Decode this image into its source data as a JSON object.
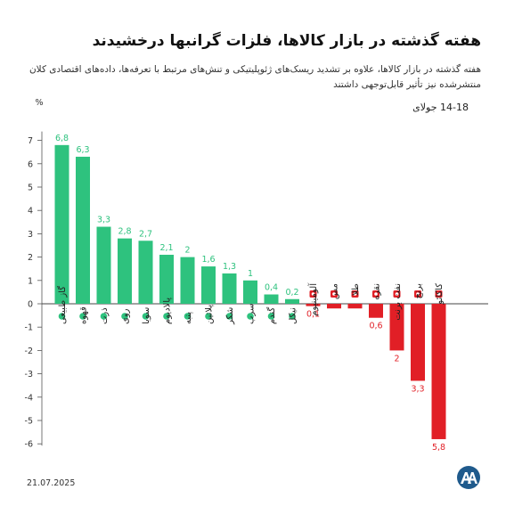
{
  "header": {
    "title": "هفته گذشته در بازار کالاها، فلزات گرانبها درخشیدند",
    "subtitle": "هفته گذشته در بازار کالاها، علاوه بر تشدید ریسک‌های ژئوپلیتیکی و تنش‌های مرتبط با تعرفه‌ها، داده‌های اقتصادی کلان منتشرشده نیز تأثیر قابل‌توجهی داشتند",
    "period": "14-18 جولای"
  },
  "footer": {
    "date": "21.07.2025",
    "logo_icon": "aa-logo-icon"
  },
  "colors": {
    "positive": "#2ec27e",
    "negative": "#e11f26",
    "logo": "#1f5a8c"
  },
  "chart_data": {
    "type": "bar",
    "ylabel": "%",
    "ylim": [
      -6,
      7
    ],
    "yticks": [
      7,
      6,
      5,
      4,
      3,
      2,
      1,
      0,
      -1,
      -2,
      -3,
      -4,
      -5,
      -6
    ],
    "grid": false,
    "categories": [
      "گاز طبیعی",
      "قهوه",
      "ذرت",
      "روی",
      "سویا",
      "پالادیوم",
      "پنبه",
      "پلاتین",
      "شکر",
      "سرب",
      "گندم",
      "نیکل",
      "آلومینیوم",
      "مس",
      "طلا",
      "نقره",
      "نفت برنت",
      "برنج",
      "کاکائو"
    ],
    "values": [
      6.8,
      6.3,
      3.3,
      2.8,
      2.7,
      2.1,
      2,
      1.6,
      1.3,
      1,
      0.4,
      0.2,
      -0.1,
      -0.2,
      -0.2,
      -0.6,
      -2,
      -3.3,
      -5.8
    ],
    "value_labels": [
      "6,8",
      "6,3",
      "3,3",
      "2,8",
      "2,7",
      "2,1",
      "2",
      "1,6",
      "1,3",
      "1",
      "0,4",
      "0,2",
      "0,1",
      "",
      "",
      "0,6",
      "2",
      "3,3",
      "5,8"
    ],
    "icons": [
      "flame-icon",
      "coffee-bean-icon",
      "corn-icon",
      "zinc-icon",
      "soybean-icon",
      "palladium-icon",
      "cotton-icon",
      "platinum-icon",
      "sugar-icon",
      "lead-icon",
      "wheat-icon",
      "nickel-icon",
      "aluminum-icon",
      "copper-icon",
      "gold-icon",
      "silver-icon",
      "brent-oil-icon",
      "rice-icon",
      "cocoa-icon"
    ]
  }
}
